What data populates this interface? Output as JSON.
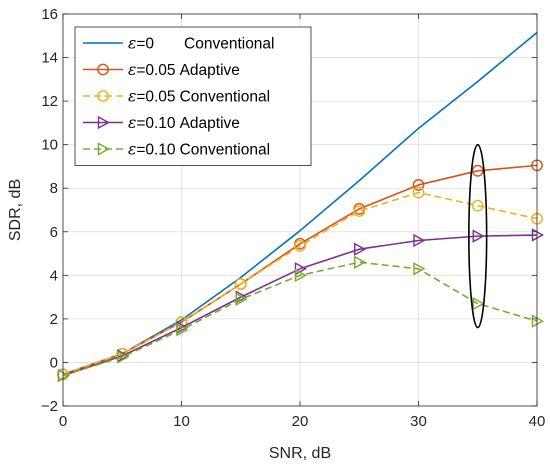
{
  "chart_data": {
    "type": "line",
    "xlabel": "SNR, dB",
    "ylabel": "SDR, dB",
    "xlim": [
      0,
      40
    ],
    "ylim": [
      -2,
      16
    ],
    "xticks": [
      0,
      10,
      20,
      30,
      40
    ],
    "yticks": [
      -2,
      0,
      2,
      4,
      6,
      8,
      10,
      12,
      14,
      16
    ],
    "grid": true,
    "legend_position": "top-left",
    "series": [
      {
        "eps_symbol": "ε",
        "eps_value": "=0",
        "method": "Conventional",
        "color": "#0072BD",
        "marker": "none",
        "dash": "solid",
        "x": [
          0,
          5,
          10,
          15,
          20,
          25,
          30,
          35,
          40
        ],
        "y": [
          -0.55,
          0.4,
          1.95,
          3.9,
          6.05,
          8.35,
          10.75,
          12.9,
          15.15
        ]
      },
      {
        "eps_symbol": "ε",
        "eps_value": "=0.05",
        "method": "Adaptive",
        "color": "#D95319",
        "marker": "circle",
        "dash": "solid",
        "x": [
          0,
          5,
          10,
          15,
          20,
          25,
          30,
          35,
          40
        ],
        "y": [
          -0.55,
          0.4,
          1.85,
          3.6,
          5.45,
          7.05,
          8.15,
          8.8,
          9.05
        ]
      },
      {
        "eps_symbol": "ε",
        "eps_value": "=0.05",
        "method": "Conventional",
        "color": "#EDB120",
        "marker": "circle",
        "dash": "dashed",
        "x": [
          0,
          5,
          10,
          15,
          20,
          25,
          30,
          35,
          40
        ],
        "y": [
          -0.55,
          0.4,
          1.85,
          3.6,
          5.35,
          6.95,
          7.8,
          7.2,
          6.6
        ]
      },
      {
        "eps_symbol": "ε",
        "eps_value": "=0.10",
        "method": "Adaptive",
        "color": "#7E2F8E",
        "marker": "triangle-right",
        "dash": "solid",
        "x": [
          0,
          5,
          10,
          15,
          20,
          25,
          30,
          35,
          40
        ],
        "y": [
          -0.6,
          0.3,
          1.6,
          3.0,
          4.3,
          5.2,
          5.6,
          5.8,
          5.85
        ]
      },
      {
        "eps_symbol": "ε",
        "eps_value": "=0.10",
        "method": "Conventional",
        "color": "#77AC30",
        "marker": "triangle-right",
        "dash": "dashed",
        "x": [
          0,
          5,
          10,
          15,
          20,
          25,
          30,
          35,
          40
        ],
        "y": [
          -0.6,
          0.25,
          1.5,
          2.9,
          4.0,
          4.6,
          4.3,
          2.7,
          1.9
        ]
      }
    ],
    "annotation": {
      "shape": "ellipse",
      "center_x": 35,
      "center_y": 5.8,
      "half_width_x": 0.75,
      "half_height_y": 4.2
    }
  }
}
